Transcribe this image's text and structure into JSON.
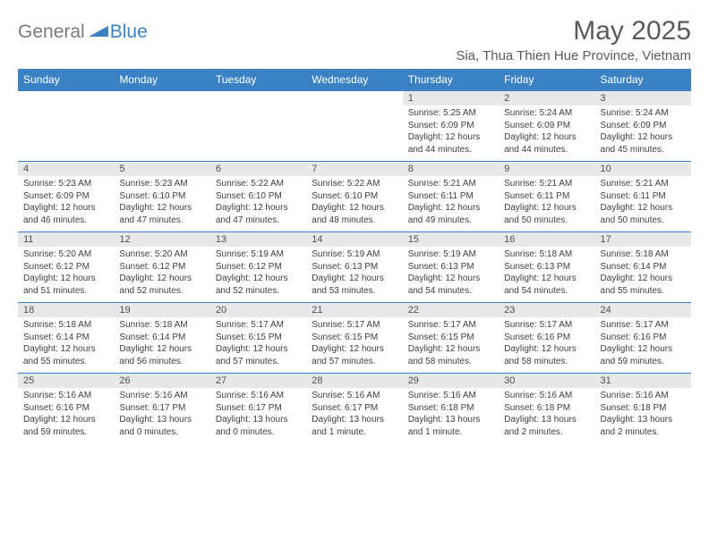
{
  "logo": {
    "text1": "General",
    "text2": "Blue"
  },
  "title": "May 2025",
  "location": "Sia, Thua Thien Hue Province, Vietnam",
  "colors": {
    "header_bg": "#3b82c4",
    "header_text": "#ffffff",
    "daynum_bg": "#e8e8e8",
    "border": "#3b82c4",
    "body_text": "#404040",
    "title_text": "#5a5a5a",
    "logo_gray": "#7a7a7a",
    "logo_blue": "#3b82c4"
  },
  "day_headers": [
    "Sunday",
    "Monday",
    "Tuesday",
    "Wednesday",
    "Thursday",
    "Friday",
    "Saturday"
  ],
  "weeks": [
    {
      "nums": [
        "",
        "",
        "",
        "",
        "1",
        "2",
        "3"
      ],
      "cells": [
        null,
        null,
        null,
        null,
        {
          "sunrise": "5:25 AM",
          "sunset": "6:09 PM",
          "daylight": "12 hours and 44 minutes."
        },
        {
          "sunrise": "5:24 AM",
          "sunset": "6:09 PM",
          "daylight": "12 hours and 44 minutes."
        },
        {
          "sunrise": "5:24 AM",
          "sunset": "6:09 PM",
          "daylight": "12 hours and 45 minutes."
        }
      ]
    },
    {
      "nums": [
        "4",
        "5",
        "6",
        "7",
        "8",
        "9",
        "10"
      ],
      "cells": [
        {
          "sunrise": "5:23 AM",
          "sunset": "6:09 PM",
          "daylight": "12 hours and 46 minutes."
        },
        {
          "sunrise": "5:23 AM",
          "sunset": "6:10 PM",
          "daylight": "12 hours and 47 minutes."
        },
        {
          "sunrise": "5:22 AM",
          "sunset": "6:10 PM",
          "daylight": "12 hours and 47 minutes."
        },
        {
          "sunrise": "5:22 AM",
          "sunset": "6:10 PM",
          "daylight": "12 hours and 48 minutes."
        },
        {
          "sunrise": "5:21 AM",
          "sunset": "6:11 PM",
          "daylight": "12 hours and 49 minutes."
        },
        {
          "sunrise": "5:21 AM",
          "sunset": "6:11 PM",
          "daylight": "12 hours and 50 minutes."
        },
        {
          "sunrise": "5:21 AM",
          "sunset": "6:11 PM",
          "daylight": "12 hours and 50 minutes."
        }
      ]
    },
    {
      "nums": [
        "11",
        "12",
        "13",
        "14",
        "15",
        "16",
        "17"
      ],
      "cells": [
        {
          "sunrise": "5:20 AM",
          "sunset": "6:12 PM",
          "daylight": "12 hours and 51 minutes."
        },
        {
          "sunrise": "5:20 AM",
          "sunset": "6:12 PM",
          "daylight": "12 hours and 52 minutes."
        },
        {
          "sunrise": "5:19 AM",
          "sunset": "6:12 PM",
          "daylight": "12 hours and 52 minutes."
        },
        {
          "sunrise": "5:19 AM",
          "sunset": "6:13 PM",
          "daylight": "12 hours and 53 minutes."
        },
        {
          "sunrise": "5:19 AM",
          "sunset": "6:13 PM",
          "daylight": "12 hours and 54 minutes."
        },
        {
          "sunrise": "5:18 AM",
          "sunset": "6:13 PM",
          "daylight": "12 hours and 54 minutes."
        },
        {
          "sunrise": "5:18 AM",
          "sunset": "6:14 PM",
          "daylight": "12 hours and 55 minutes."
        }
      ]
    },
    {
      "nums": [
        "18",
        "19",
        "20",
        "21",
        "22",
        "23",
        "24"
      ],
      "cells": [
        {
          "sunrise": "5:18 AM",
          "sunset": "6:14 PM",
          "daylight": "12 hours and 55 minutes."
        },
        {
          "sunrise": "5:18 AM",
          "sunset": "6:14 PM",
          "daylight": "12 hours and 56 minutes."
        },
        {
          "sunrise": "5:17 AM",
          "sunset": "6:15 PM",
          "daylight": "12 hours and 57 minutes."
        },
        {
          "sunrise": "5:17 AM",
          "sunset": "6:15 PM",
          "daylight": "12 hours and 57 minutes."
        },
        {
          "sunrise": "5:17 AM",
          "sunset": "6:15 PM",
          "daylight": "12 hours and 58 minutes."
        },
        {
          "sunrise": "5:17 AM",
          "sunset": "6:16 PM",
          "daylight": "12 hours and 58 minutes."
        },
        {
          "sunrise": "5:17 AM",
          "sunset": "6:16 PM",
          "daylight": "12 hours and 59 minutes."
        }
      ]
    },
    {
      "nums": [
        "25",
        "26",
        "27",
        "28",
        "29",
        "30",
        "31"
      ],
      "cells": [
        {
          "sunrise": "5:16 AM",
          "sunset": "6:16 PM",
          "daylight": "12 hours and 59 minutes."
        },
        {
          "sunrise": "5:16 AM",
          "sunset": "6:17 PM",
          "daylight": "13 hours and 0 minutes."
        },
        {
          "sunrise": "5:16 AM",
          "sunset": "6:17 PM",
          "daylight": "13 hours and 0 minutes."
        },
        {
          "sunrise": "5:16 AM",
          "sunset": "6:17 PM",
          "daylight": "13 hours and 1 minute."
        },
        {
          "sunrise": "5:16 AM",
          "sunset": "6:18 PM",
          "daylight": "13 hours and 1 minute."
        },
        {
          "sunrise": "5:16 AM",
          "sunset": "6:18 PM",
          "daylight": "13 hours and 2 minutes."
        },
        {
          "sunrise": "5:16 AM",
          "sunset": "6:18 PM",
          "daylight": "13 hours and 2 minutes."
        }
      ]
    }
  ],
  "labels": {
    "sunrise": "Sunrise: ",
    "sunset": "Sunset: ",
    "daylight": "Daylight: "
  }
}
